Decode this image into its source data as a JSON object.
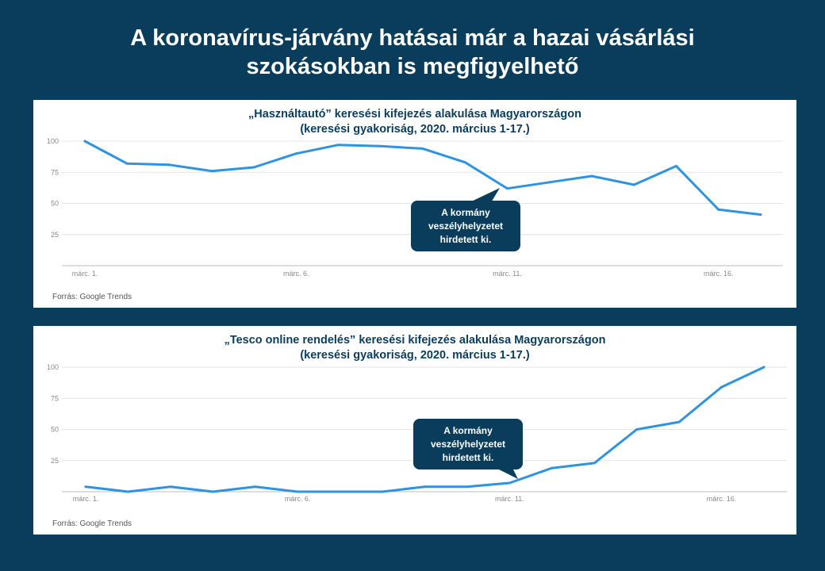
{
  "page": {
    "title_line1": "A koronavírus-járvány hatásai már a hazai vásárlási",
    "title_line2": "szokásokban is megfigyelhető"
  },
  "colors": {
    "background": "#0a3d5c",
    "line": "#2f93e0",
    "callout": "#0a3d5c"
  },
  "chart_data": [
    {
      "type": "line",
      "title_line1": "„Használtautó” keresési kifejezés alakulása Magyarországon",
      "title_line2": "(keresési gyakoriság, 2020. március 1-17.)",
      "x": [
        "márc. 1.",
        "márc. 2.",
        "márc. 3.",
        "márc. 4.",
        "márc. 5.",
        "márc. 6.",
        "márc. 7.",
        "márc. 8.",
        "márc. 9.",
        "márc. 10.",
        "márc. 11.",
        "márc. 12.",
        "márc. 13.",
        "márc. 14.",
        "márc. 15.",
        "márc. 16.",
        "márc. 17."
      ],
      "values": [
        100,
        82,
        81,
        76,
        79,
        90,
        97,
        96,
        94,
        83,
        62,
        67,
        72,
        65,
        80,
        45,
        41
      ],
      "x_tick_labels": [
        "márc. 1.",
        "márc. 6.",
        "márc. 11.",
        "márc. 16."
      ],
      "y_ticks": [
        25,
        50,
        75,
        100
      ],
      "ylim": [
        0,
        100
      ],
      "grid": true,
      "annotation": {
        "text": "A kormány\nveszélyhelyzetet\nhirdetett ki.",
        "x_index": 10
      },
      "source": "Forrás: Google Trends"
    },
    {
      "type": "line",
      "title_line1": "„Tesco online rendelés” keresési kifejezés alakulása Magyarországon",
      "title_line2": "(keresési gyakoriság, 2020. március 1-17.)",
      "x": [
        "márc. 1.",
        "márc. 2.",
        "márc. 3.",
        "márc. 4.",
        "márc. 5.",
        "márc. 6.",
        "márc. 7.",
        "márc. 8.",
        "márc. 9.",
        "márc. 10.",
        "márc. 11.",
        "márc. 12.",
        "márc. 13.",
        "márc. 14.",
        "márc. 15.",
        "márc. 16.",
        "márc. 17."
      ],
      "values": [
        4,
        0,
        4,
        0,
        4,
        0,
        0,
        0,
        4,
        4,
        7,
        19,
        23,
        50,
        56,
        84,
        100
      ],
      "x_tick_labels": [
        "márc. 1.",
        "márc. 6.",
        "márc. 11.",
        "márc. 16."
      ],
      "y_ticks": [
        25,
        50,
        75,
        100
      ],
      "ylim": [
        0,
        100
      ],
      "grid": true,
      "annotation": {
        "text": "A kormány\nveszélyhelyzetet\nhirdetett ki.",
        "x_index": 10
      },
      "source": "Forrás: Google Trends"
    }
  ]
}
